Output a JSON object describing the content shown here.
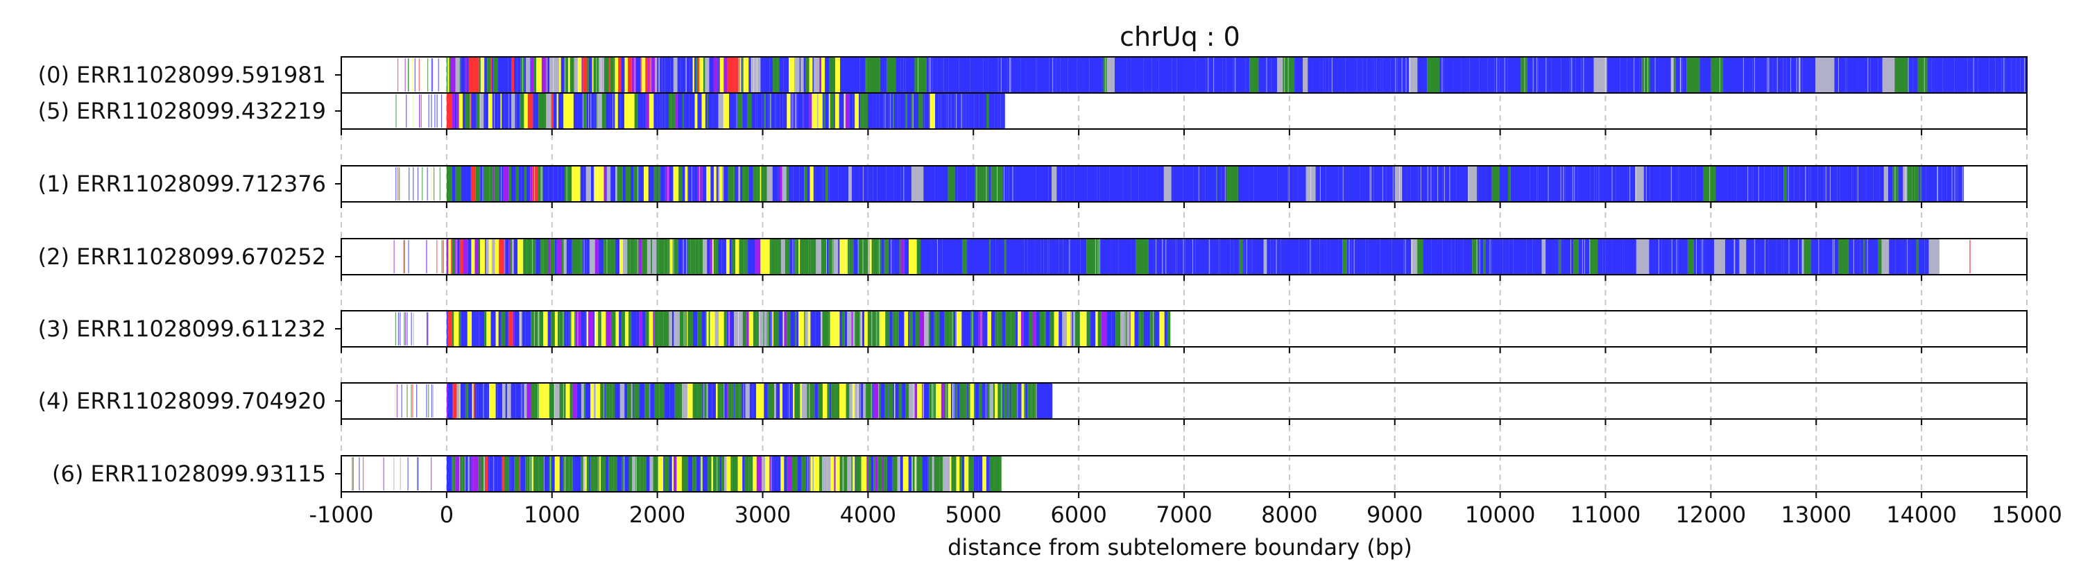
{
  "chart_data": {
    "type": "bar",
    "title": "chrUq : 0",
    "xlabel": "distance from subtelomere boundary (bp)",
    "ylabel": "",
    "xlim": [
      -1000,
      15000
    ],
    "x_ticks": [
      -1000,
      0,
      1000,
      2000,
      3000,
      4000,
      5000,
      6000,
      7000,
      8000,
      9000,
      10000,
      11000,
      12000,
      13000,
      14000,
      15000
    ],
    "x_tick_labels": [
      "-1000",
      "0",
      "1000",
      "2000",
      "3000",
      "4000",
      "5000",
      "6000",
      "7000",
      "8000",
      "9000",
      "10000",
      "11000",
      "12000",
      "13000",
      "14000",
      "15000"
    ],
    "grid": "vertical dashed",
    "colors": {
      "blue": "#3333ff",
      "green": "#2e8b2e",
      "yellow": "#ffff33",
      "red": "#ff3333",
      "purple": "#a020f0",
      "gray": "#b0b0c8",
      "axis": "#000000",
      "grid": "#c8c8c8"
    },
    "panels": [
      {
        "reads": [
          {
            "label": "(0) ERR11028099.591981",
            "x_end": 15000,
            "pre_ticks_from": -500,
            "seed": 11,
            "profile": [
              {
                "to": 2800,
                "mix": "dense"
              },
              {
                "to": 3800,
                "mix": "mixed"
              },
              {
                "to": 15000,
                "mix": "blue"
              }
            ]
          },
          {
            "label": "(5) ERR11028099.432219",
            "x_end": 5300,
            "pre_ticks_from": -500,
            "seed": 23,
            "profile": [
              {
                "to": 1300,
                "mix": "dense"
              },
              {
                "to": 4000,
                "mix": "mixed"
              },
              {
                "to": 5300,
                "mix": "mixedblue"
              }
            ]
          }
        ]
      },
      {
        "reads": [
          {
            "label": "(1) ERR11028099.712376",
            "x_end": 14400,
            "pre_ticks_from": -500,
            "seed": 37,
            "profile": [
              {
                "to": 1300,
                "mix": "dense"
              },
              {
                "to": 3500,
                "mix": "mixed"
              },
              {
                "to": 13600,
                "mix": "blue"
              },
              {
                "to": 14000,
                "mix": "greenish"
              },
              {
                "to": 14400,
                "mix": "blue"
              }
            ]
          }
        ]
      },
      {
        "reads": [
          {
            "label": "(2) ERR11028099.670252",
            "x_end": 14170,
            "pre_ticks_from": -500,
            "post_ticks": [
              14460
            ],
            "seed": 41,
            "profile": [
              {
                "to": 600,
                "mix": "dense"
              },
              {
                "to": 4500,
                "mix": "greenish"
              },
              {
                "to": 14170,
                "mix": "blue"
              }
            ]
          }
        ]
      },
      {
        "reads": [
          {
            "label": "(3) ERR11028099.611232",
            "x_end": 6870,
            "pre_ticks_from": -500,
            "seed": 53,
            "profile": [
              {
                "to": 700,
                "mix": "dense"
              },
              {
                "to": 6870,
                "mix": "greenish"
              }
            ]
          }
        ]
      },
      {
        "reads": [
          {
            "label": "(4) ERR11028099.704920",
            "x_end": 5750,
            "pre_ticks_from": -500,
            "seed": 67,
            "profile": [
              {
                "to": 700,
                "mix": "dense"
              },
              {
                "to": 5600,
                "mix": "greenish"
              },
              {
                "to": 5750,
                "mix": "blue"
              }
            ]
          }
        ]
      },
      {
        "reads": [
          {
            "label": "(6) ERR11028099.93115",
            "x_end": 5270,
            "pre_ticks_from": -900,
            "seed": 79,
            "profile": [
              {
                "to": 700,
                "mix": "dense"
              },
              {
                "to": 5270,
                "mix": "greenish"
              }
            ]
          }
        ]
      }
    ]
  }
}
